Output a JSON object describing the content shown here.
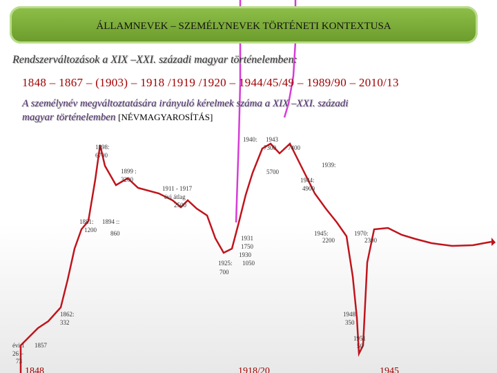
{
  "header": {
    "title": "ÁLLAMNEVEK – SZEMÉLYNEVEK TÖRTÉNETI KONTEXTUSA"
  },
  "subtitle": "Rendszerváltozások a XIX –XXI. századi magyar történelemben:",
  "timeline": "1848 – 1867 – (1903) – 1918 /1919 /1920 – 1944/45/49 – 1989/90 – 2010/13",
  "heading": {
    "line1": "A személynév megváltoztatására irányuló kérelmek száma a XIX –XXI. századi",
    "line2": "magyar történelemben",
    "tag": "[NÉVMAGYAROSÍTÁS]"
  },
  "annotations": [
    "1898:",
    "6700",
    "1899 :",
    "3200",
    "1911 - 1917",
    "évi átlag",
    "2500",
    "1881:",
    "1894 ::",
    "1200",
    "860",
    "1931",
    "1750",
    "1930",
    "1925:",
    "1050",
    "700",
    "1940:",
    "1943",
    "7300",
    "7400",
    "1939:",
    "5700",
    "1944:",
    "4900",
    "1945:",
    "2200",
    "1970:",
    "2300",
    "1862:",
    "332",
    "1948",
    "350",
    "1951",
    "50",
    "évi 1",
    "26 –",
    "73",
    "1857"
  ],
  "axis_labels": [
    "1848",
    "1918/20",
    "1945"
  ]
}
